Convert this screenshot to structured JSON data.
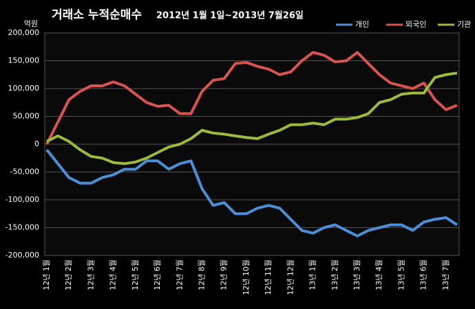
{
  "chart_data": {
    "type": "line",
    "title": "거래소 누적순매수",
    "subtitle": "2012년 1월 1일~2013년 7월26일",
    "y_unit": "억원",
    "categories": [
      "12년 1월",
      null,
      "12년 2월",
      null,
      "12년 3월",
      null,
      "12년 4월",
      null,
      "12년 5월",
      null,
      "12년 6월",
      null,
      "12년 7월",
      null,
      "12년 8월",
      null,
      "12년 9월",
      null,
      "12년 10월",
      null,
      "12년 11월",
      null,
      "12년 12월",
      null,
      "13년 1월",
      null,
      "13년 2월",
      null,
      "13년 3월",
      null,
      "13년 4월",
      null,
      "13년 5월",
      null,
      "13년 6월",
      null,
      "13년 7월",
      null
    ],
    "series": [
      {
        "name": "개인",
        "color": "#4a90d9",
        "values": [
          -10000,
          -35000,
          -60000,
          -70000,
          -70000,
          -60000,
          -55000,
          -45000,
          -45000,
          -30000,
          -30000,
          -45000,
          -35000,
          -30000,
          -80000,
          -110000,
          -105000,
          -125000,
          -125000,
          -115000,
          -110000,
          -115000,
          -135000,
          -155000,
          -160000,
          -150000,
          -145000,
          -155000,
          -165000,
          -155000,
          -150000,
          -145000,
          -145000,
          -155000,
          -140000,
          -135000,
          -132000,
          -145000
        ]
      },
      {
        "name": "외국인",
        "color": "#d9534f",
        "values": [
          0,
          40000,
          80000,
          95000,
          105000,
          105000,
          112000,
          105000,
          90000,
          75000,
          68000,
          70000,
          55000,
          55000,
          95000,
          115000,
          118000,
          145000,
          147000,
          140000,
          135000,
          125000,
          130000,
          150000,
          165000,
          160000,
          148000,
          150000,
          165000,
          145000,
          125000,
          110000,
          105000,
          100000,
          110000,
          80000,
          62000,
          70000
        ]
      },
      {
        "name": "기관",
        "color": "#9bbb3a",
        "values": [
          5000,
          15000,
          5000,
          -10000,
          -22000,
          -25000,
          -33000,
          -35000,
          -32000,
          -25000,
          -15000,
          -5000,
          0,
          10000,
          25000,
          20000,
          18000,
          15000,
          12000,
          10000,
          18000,
          25000,
          35000,
          35000,
          38000,
          35000,
          45000,
          45000,
          48000,
          55000,
          75000,
          80000,
          90000,
          92000,
          92000,
          120000,
          125000,
          128000
        ]
      }
    ],
    "ylim": [
      -200000,
      200000
    ],
    "yticks": [
      {
        "value": -200000,
        "label": "-200,000"
      },
      {
        "value": -150000,
        "label": "-150,000"
      },
      {
        "value": -100000,
        "label": "-100,000"
      },
      {
        "value": -50000,
        "label": "-50,000"
      },
      0,
      {
        "value": 50000,
        "label": "50,000"
      },
      {
        "value": 100000,
        "label": "100,000"
      },
      {
        "value": 150000,
        "label": "150,000"
      },
      {
        "value": 200000,
        "label": "200,000"
      }
    ],
    "grid": true,
    "legend": "top-right"
  }
}
